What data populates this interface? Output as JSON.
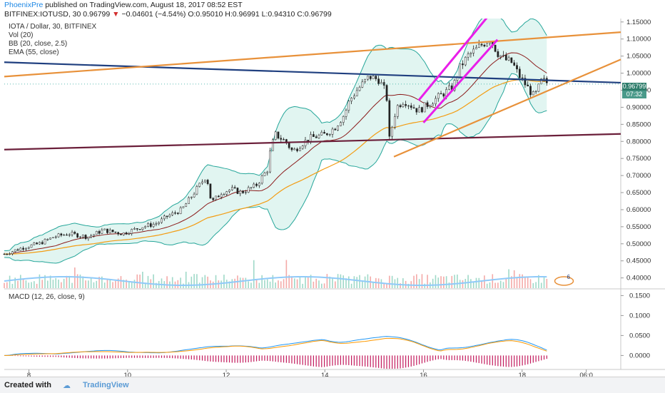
{
  "header": {
    "user": "PhoenixPre",
    "published": "published on TradingView.com, August 18, 2017 08:52 EST",
    "symbol": "BITFINEX:IOTUSD, 30",
    "last": "0.96799",
    "change": "−0.04601 (−4.54%)",
    "ohlc": "O:0.95010 H:0.96991 L:0.94310 C:0.96799"
  },
  "legend": {
    "title": "IOTA / Dollar, 30, BITFINEX",
    "vol": "Vol (20)",
    "bb": "BB (20, close, 2.5)",
    "ema": "EMA (55, close)",
    "macd": "MACD (12, 26, close, 9)"
  },
  "price_tags": {
    "price": "0.96799",
    "timer": "07:32"
  },
  "footer": {
    "created_with": "Created with",
    "brand": "TradingView"
  },
  "colors": {
    "up": "#26a69a",
    "down": "#ef5350",
    "bb_fill": "#c9ece6",
    "bb_line": "#26a69a",
    "ema": "#f39c12",
    "basis": "#8b1a1a",
    "trend_blue": "#1f3f7f",
    "trend_orange": "#e8913a",
    "trend_maroon": "#6b1f3a",
    "channel": "#e91ee9",
    "volume": "#90caf9",
    "macd_line": "#2196f3",
    "signal_line": "#ff9800",
    "hist": "#c2185b",
    "pill": "#e8913a",
    "pill_text": "#1f3f7f"
  },
  "chart_data": {
    "type": "candlestick",
    "price_axis": {
      "min": 0.37,
      "max": 1.16,
      "ticks": [
        "1.15000",
        "1.10000",
        "1.05000",
        "1.00000",
        "0.95000",
        "0.90000",
        "0.85000",
        "0.80000",
        "0.75000",
        "0.70000",
        "0.65000",
        "0.60000",
        "0.55000",
        "0.50000",
        "0.45000",
        "0.40000"
      ],
      "tick_values": [
        1.15,
        1.1,
        1.05,
        1.0,
        0.95,
        0.9,
        0.85,
        0.8,
        0.75,
        0.7,
        0.65,
        0.6,
        0.55,
        0.5,
        0.45,
        0.4
      ]
    },
    "macd_axis": {
      "min": -0.035,
      "max": 0.165,
      "ticks": [
        "0.1500",
        "0.1000",
        "0.0500",
        "0.0000"
      ],
      "tick_values": [
        0.15,
        0.1,
        0.05,
        0.0
      ]
    },
    "time_axis": {
      "min_day": 7.5,
      "max_day": 20.0,
      "labels": [
        "8",
        "10",
        "12",
        "14",
        "16",
        "18",
        "06:0"
      ],
      "label_days": [
        8,
        10,
        12,
        14,
        16,
        18,
        19.3
      ]
    },
    "close_path": [
      [
        7.5,
        0.47
      ],
      [
        7.9,
        0.49
      ],
      [
        8.2,
        0.5
      ],
      [
        8.5,
        0.52
      ],
      [
        8.8,
        0.53
      ],
      [
        9.2,
        0.52
      ],
      [
        9.5,
        0.54
      ],
      [
        9.9,
        0.53
      ],
      [
        10.3,
        0.55
      ],
      [
        10.6,
        0.56
      ],
      [
        10.8,
        0.58
      ],
      [
        11.1,
        0.6
      ],
      [
        11.3,
        0.64
      ],
      [
        11.5,
        0.68
      ],
      [
        11.6,
        0.7
      ],
      [
        11.7,
        0.62
      ],
      [
        11.9,
        0.65
      ],
      [
        12.1,
        0.66
      ],
      [
        12.3,
        0.65
      ],
      [
        12.6,
        0.67
      ],
      [
        12.85,
        0.72
      ],
      [
        12.9,
        0.78
      ],
      [
        13.0,
        0.82
      ],
      [
        13.2,
        0.8
      ],
      [
        13.35,
        0.77
      ],
      [
        13.5,
        0.79
      ],
      [
        13.7,
        0.81
      ],
      [
        14.0,
        0.82
      ],
      [
        14.2,
        0.84
      ],
      [
        14.4,
        0.88
      ],
      [
        14.5,
        0.92
      ],
      [
        14.65,
        0.95
      ],
      [
        14.9,
        0.99
      ],
      [
        15.1,
        0.98
      ],
      [
        15.25,
        0.94
      ],
      [
        15.3,
        0.8
      ],
      [
        15.45,
        0.9
      ],
      [
        15.6,
        0.92
      ],
      [
        15.9,
        0.89
      ],
      [
        16.1,
        0.91
      ],
      [
        16.3,
        0.93
      ],
      [
        16.6,
        0.96
      ],
      [
        16.75,
        1.02
      ],
      [
        16.9,
        1.05
      ],
      [
        17.15,
        1.08
      ],
      [
        17.35,
        1.1
      ],
      [
        17.5,
        1.06
      ],
      [
        17.65,
        1.04
      ],
      [
        17.8,
        1.03
      ],
      [
        17.95,
        0.99
      ],
      [
        18.1,
        0.96
      ],
      [
        18.25,
        0.93
      ],
      [
        18.4,
        0.98
      ],
      [
        18.55,
        0.968
      ]
    ],
    "trendlines": [
      {
        "name": "blue-descending",
        "from": [
          7.5,
          1.032
        ],
        "to": [
          20.0,
          0.972
        ]
      },
      {
        "name": "orange-top",
        "from": [
          7.5,
          0.99
        ],
        "to": [
          20.0,
          1.12
        ]
      },
      {
        "name": "maroon-support",
        "from": [
          7.5,
          0.776
        ],
        "to": [
          20.0,
          0.822
        ]
      },
      {
        "name": "orange-rising",
        "from": [
          15.4,
          0.755
        ],
        "to": [
          20.0,
          1.04
        ]
      },
      {
        "name": "magenta-upper",
        "from": [
          15.9,
          0.92
        ],
        "to": [
          17.3,
          1.165
        ]
      },
      {
        "name": "magenta-lower",
        "from": [
          16.0,
          0.855
        ],
        "to": [
          17.5,
          1.098
        ]
      }
    ]
  }
}
